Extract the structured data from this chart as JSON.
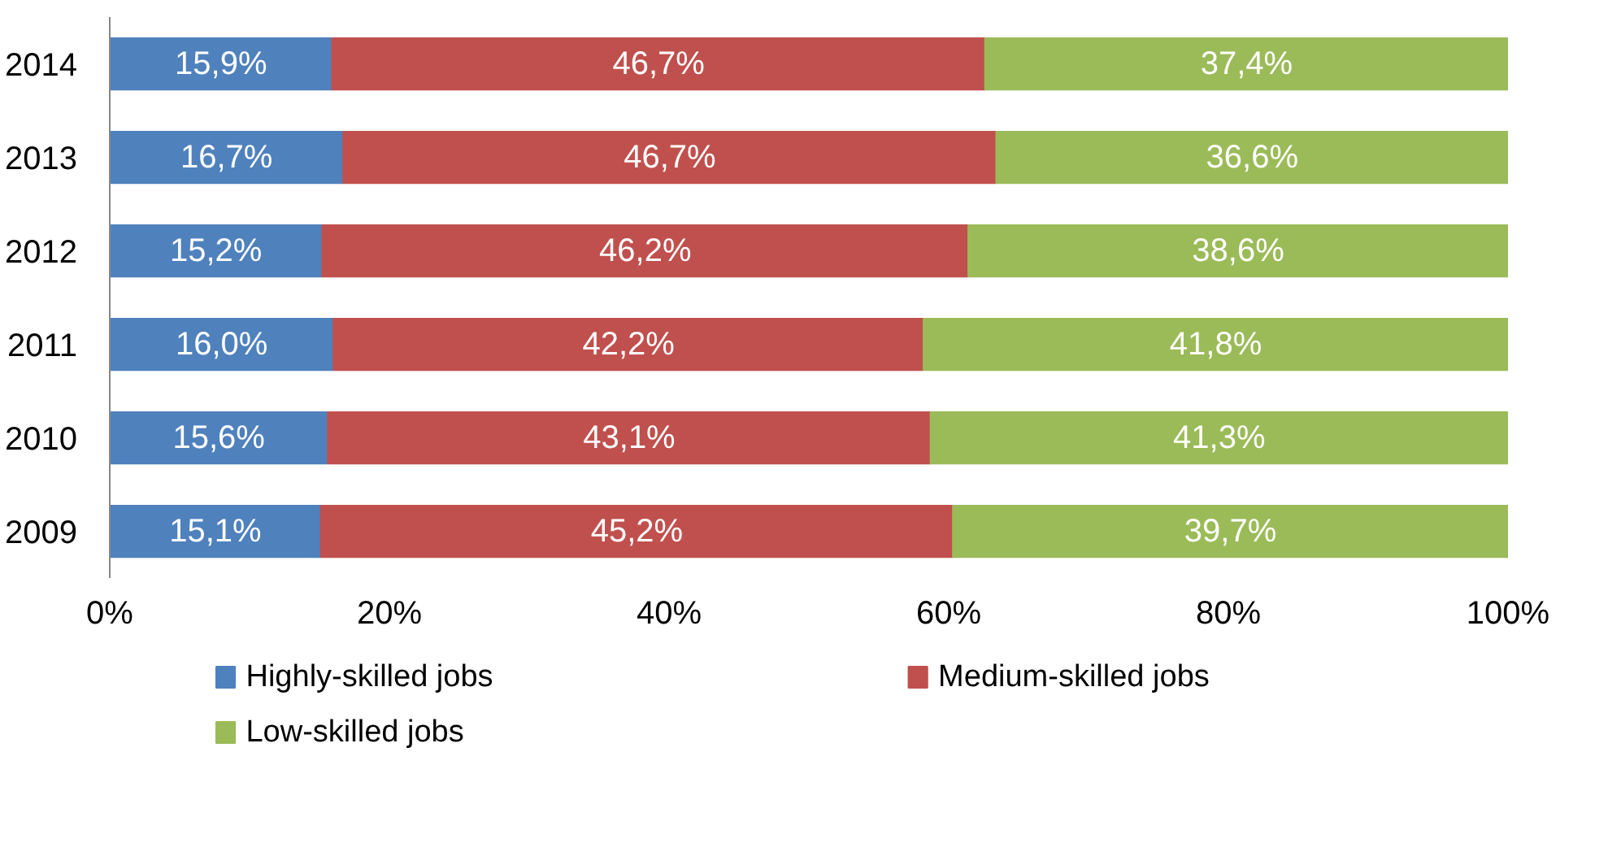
{
  "chart_data": {
    "type": "bar",
    "orientation": "horizontal",
    "stacked": true,
    "categories": [
      "2014",
      "2013",
      "2012",
      "2011",
      "2010",
      "2009"
    ],
    "series": [
      {
        "name": "Highly-skilled jobs",
        "color": "#4f81bd",
        "values": [
          15.9,
          16.7,
          15.2,
          16.0,
          15.6,
          15.1
        ],
        "value_labels": [
          "15,9%",
          "16,7%",
          "15,2%",
          "16,0%",
          "15,6%",
          "15,1%"
        ]
      },
      {
        "name": "Medium-skilled jobs",
        "color": "#c0504d",
        "values": [
          46.7,
          46.7,
          46.2,
          42.2,
          43.1,
          45.2
        ],
        "value_labels": [
          "46,7%",
          "46,7%",
          "46,2%",
          "42,2%",
          "43,1%",
          "45,2%"
        ]
      },
      {
        "name": "Low-skilled jobs",
        "color": "#9bbb59",
        "values": [
          37.4,
          36.6,
          38.6,
          41.8,
          41.3,
          39.7
        ],
        "value_labels": [
          "37,4%",
          "36,6%",
          "38,6%",
          "41,8%",
          "41,3%",
          "39,7%"
        ]
      }
    ],
    "xlim": [
      0,
      100
    ],
    "xticks": [
      {
        "value": 0,
        "label": "0%"
      },
      {
        "value": 20,
        "label": "20%"
      },
      {
        "value": 40,
        "label": "40%"
      },
      {
        "value": 60,
        "label": "60%"
      },
      {
        "value": 80,
        "label": "80%"
      },
      {
        "value": 100,
        "label": "100%"
      }
    ],
    "grid": false,
    "legend": "bottom"
  }
}
